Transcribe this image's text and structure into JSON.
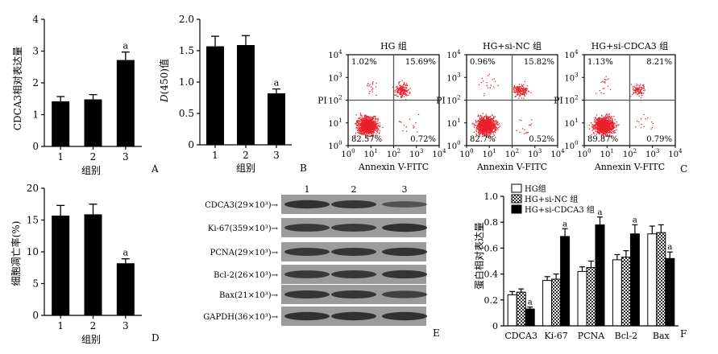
{
  "colors": {
    "bar": "#000000",
    "dot": "#e8202a",
    "quad": "#555555",
    "band": "#2a2a2a",
    "blot_bg": "#9b9b9b"
  },
  "chart_data": [
    {
      "id": "A",
      "type": "bar",
      "panel_label": "A",
      "ylabel": "CDCA3相对表达量",
      "xlabel": "组别",
      "categories": [
        "1",
        "2",
        "3"
      ],
      "values": [
        1.42,
        1.48,
        2.72
      ],
      "errors": [
        0.15,
        0.15,
        0.25
      ],
      "significance": [
        "",
        "",
        "a"
      ],
      "ylim": [
        0,
        4
      ],
      "yticks": [
        "0",
        "1",
        "2",
        "3",
        "4"
      ]
    },
    {
      "id": "B",
      "type": "bar",
      "panel_label": "B",
      "ylabel": "D(450)值",
      "ylabel_italic": "D",
      "ylabel_rest": "(450)值",
      "xlabel": "组别",
      "categories": [
        "1",
        "2",
        "3"
      ],
      "values": [
        1.57,
        1.59,
        0.82
      ],
      "errors": [
        0.16,
        0.15,
        0.07
      ],
      "significance": [
        "",
        "",
        "a"
      ],
      "ylim": [
        0,
        2.0
      ],
      "yticks": [
        "0",
        "0.5",
        "1.0",
        "1.5",
        "2.0"
      ]
    },
    {
      "id": "C",
      "type": "scatter",
      "panel_label": "C",
      "xlabel": "Annexin V-FITC",
      "ylabel": "PI",
      "xlim": [
        0,
        4
      ],
      "ylim": [
        0,
        4
      ],
      "xscale": "log",
      "yscale": "log",
      "xticks": [
        "10",
        "10",
        "10",
        "10",
        "10"
      ],
      "xtick_exp": [
        "0",
        "1",
        "2",
        "3",
        "4"
      ],
      "yticks": [
        "10",
        "10",
        "10",
        "10",
        "10"
      ],
      "ytick_exp": [
        "0",
        "1",
        "2",
        "3",
        "4"
      ],
      "gate": {
        "x": 2,
        "y": 2
      },
      "plots": [
        {
          "title": "HG 组",
          "ul": "1.02%",
          "ur": "15.69%",
          "ll": "82.57%",
          "lr": "0.72%"
        },
        {
          "title": "HG+si-NC 组",
          "ul": "0.96%",
          "ur": "15.82%",
          "ll": "82.7%",
          "lr": "0.52%"
        },
        {
          "title": "HG+si-CDCA3 组",
          "ul": "1.13%",
          "ur": "8.21%",
          "ll": "89.87%",
          "lr": "0.79%"
        }
      ]
    },
    {
      "id": "D",
      "type": "bar",
      "panel_label": "D",
      "ylabel": "细胞凋亡率(%)",
      "xlabel": "组别",
      "categories": [
        "1",
        "2",
        "3"
      ],
      "values": [
        15.7,
        15.9,
        8.2
      ],
      "errors": [
        1.6,
        1.6,
        0.7
      ],
      "significance": [
        "",
        "",
        "a"
      ],
      "ylim": [
        0,
        20
      ],
      "yticks": [
        "0",
        "5",
        "10",
        "15",
        "20"
      ]
    },
    {
      "id": "F",
      "type": "bar",
      "panel_label": "F",
      "ylabel": "蛋白相对表达量",
      "xlabel": "",
      "categories": [
        "CDCA3",
        "Ki-67",
        "PCNA",
        "Bcl-2",
        "Bax"
      ],
      "series": [
        {
          "name": "HG组",
          "values": [
            0.24,
            0.35,
            0.42,
            0.51,
            0.71
          ],
          "errors": [
            0.025,
            0.03,
            0.035,
            0.04,
            0.06
          ],
          "significance": [
            "",
            "",
            "",
            "",
            ""
          ]
        },
        {
          "name": "HG+si-NC 组",
          "values": [
            0.26,
            0.36,
            0.45,
            0.53,
            0.72
          ],
          "errors": [
            0.025,
            0.04,
            0.05,
            0.05,
            0.06
          ],
          "significance": [
            "",
            "",
            "",
            "",
            ""
          ]
        },
        {
          "name": "HG+si-CDCA3 组",
          "values": [
            0.13,
            0.69,
            0.78,
            0.71,
            0.52
          ],
          "errors": [
            0.015,
            0.06,
            0.06,
            0.07,
            0.05
          ],
          "significance": [
            "a",
            "a",
            "a",
            "a",
            "a"
          ]
        }
      ],
      "ylim": [
        0,
        1.0
      ],
      "yticks": [
        "0",
        "0.2",
        "0.4",
        "0.6",
        "0.8",
        "1.0"
      ],
      "legend_position": "top-left"
    }
  ],
  "blot": {
    "panel_label": "E",
    "lanes": [
      "1",
      "2",
      "3"
    ],
    "rows": [
      {
        "label": "CDCA3(29×10³)→",
        "intensity": [
          0.9,
          0.85,
          0.45
        ]
      },
      {
        "label": "Ki-67(359×10³)→",
        "intensity": [
          0.8,
          0.8,
          0.9
        ]
      },
      {
        "label": "PCNA(29×10³)→",
        "intensity": [
          0.82,
          0.85,
          0.88
        ]
      },
      {
        "label": "Bcl-2(26×10³)→",
        "intensity": [
          0.8,
          0.82,
          0.86
        ]
      },
      {
        "label": "Bax(21×10³)→",
        "intensity": [
          0.85,
          0.85,
          0.7
        ]
      },
      {
        "label": "GAPDH(36×10³)→",
        "intensity": [
          0.9,
          0.9,
          0.9
        ]
      }
    ]
  }
}
